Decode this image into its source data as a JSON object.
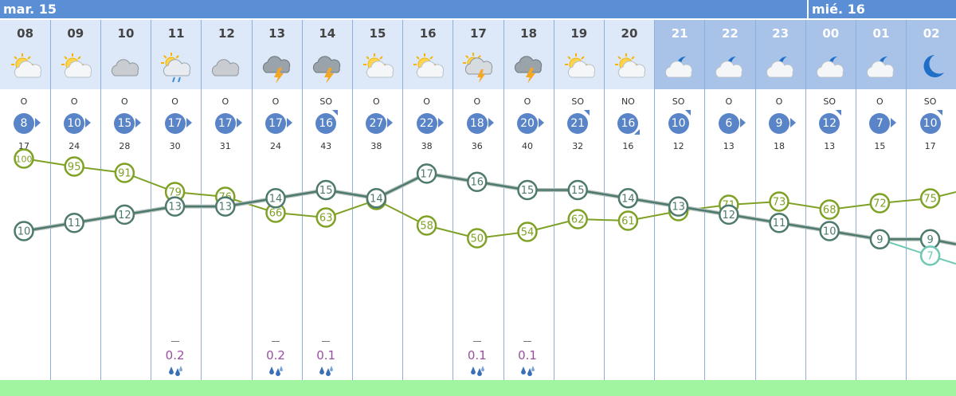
{
  "days": [
    {
      "label": "mar. 15"
    },
    {
      "label": "mié. 16"
    }
  ],
  "hours": [
    {
      "hour": "08",
      "period": "day",
      "icon": "sun-cloud-icon"
    },
    {
      "hour": "09",
      "period": "day",
      "icon": "sun-cloud-icon"
    },
    {
      "hour": "10",
      "period": "day",
      "icon": "cloud-icon"
    },
    {
      "hour": "11",
      "period": "day",
      "icon": "sun-cloud-rain-icon"
    },
    {
      "hour": "12",
      "period": "day",
      "icon": "cloud-icon"
    },
    {
      "hour": "13",
      "period": "day",
      "icon": "storm-icon"
    },
    {
      "hour": "14",
      "period": "day",
      "icon": "storm-icon"
    },
    {
      "hour": "15",
      "period": "day",
      "icon": "sun-cloud-icon"
    },
    {
      "hour": "16",
      "period": "day",
      "icon": "sun-cloud-icon"
    },
    {
      "hour": "17",
      "period": "day",
      "icon": "sun-storm-icon"
    },
    {
      "hour": "18",
      "period": "day",
      "icon": "storm-icon"
    },
    {
      "hour": "19",
      "period": "day",
      "icon": "sun-cloud-icon"
    },
    {
      "hour": "20",
      "period": "day",
      "icon": "sun-cloud-icon"
    },
    {
      "hour": "21",
      "period": "night",
      "icon": "moon-cloud-icon"
    },
    {
      "hour": "22",
      "period": "night",
      "icon": "moon-cloud-icon"
    },
    {
      "hour": "23",
      "period": "night",
      "icon": "moon-cloud-icon"
    },
    {
      "hour": "00",
      "period": "night",
      "icon": "moon-cloud-icon"
    },
    {
      "hour": "01",
      "period": "night",
      "icon": "moon-cloud-icon"
    },
    {
      "hour": "02",
      "period": "night",
      "icon": "moon-icon"
    }
  ],
  "wind": {
    "directions": [
      "O",
      "O",
      "O",
      "O",
      "O",
      "O",
      "SO",
      "O",
      "O",
      "O",
      "O",
      "SO",
      "NO",
      "SO",
      "O",
      "O",
      "SO",
      "O",
      "SO"
    ],
    "speeds": [
      8,
      10,
      15,
      17,
      17,
      17,
      16,
      27,
      22,
      18,
      20,
      21,
      16,
      10,
      6,
      9,
      12,
      7,
      10
    ],
    "gusts": [
      17,
      24,
      28,
      30,
      31,
      24,
      43,
      38,
      38,
      36,
      40,
      32,
      16,
      12,
      13,
      18,
      13,
      15,
      17
    ]
  },
  "precipitation": {
    "values": [
      "",
      "",
      "",
      "0.2",
      "",
      "0.2",
      "0.1",
      "",
      "",
      "0.1",
      "0.1",
      "",
      "",
      "",
      "",
      "",
      "",
      "",
      ""
    ]
  },
  "colors": {
    "header": "#5a8fd6",
    "day_bg": "#dde9f8",
    "night_bg": "#a9c3e8",
    "wind_badge": "#5a84c8",
    "humidity": "#7fa126",
    "temperature": "#4e7a6e",
    "feels_like": "#6ec8b4",
    "precip_text": "#9a4fa3",
    "bottom_bar": "#a2f5a0"
  },
  "chart_data": {
    "type": "line",
    "x": [
      "08",
      "09",
      "10",
      "11",
      "12",
      "13",
      "14",
      "15",
      "16",
      "17",
      "18",
      "19",
      "20",
      "21",
      "22",
      "23",
      "00",
      "01",
      "02"
    ],
    "series": [
      {
        "values": [
          100,
          95,
          91,
          79,
          76,
          66,
          63,
          74,
          58,
          50,
          54,
          62,
          61,
          67,
          71,
          73,
          68,
          72,
          75
        ]
      },
      {
        "values": [
          10,
          11,
          12,
          13,
          13,
          14,
          15,
          14,
          17,
          16,
          15,
          15,
          14,
          13,
          12,
          11,
          10,
          9,
          9
        ]
      },
      {
        "values": [
          null,
          null,
          null,
          null,
          null,
          null,
          null,
          null,
          null,
          null,
          null,
          null,
          null,
          null,
          null,
          null,
          null,
          null,
          7
        ]
      }
    ]
  }
}
